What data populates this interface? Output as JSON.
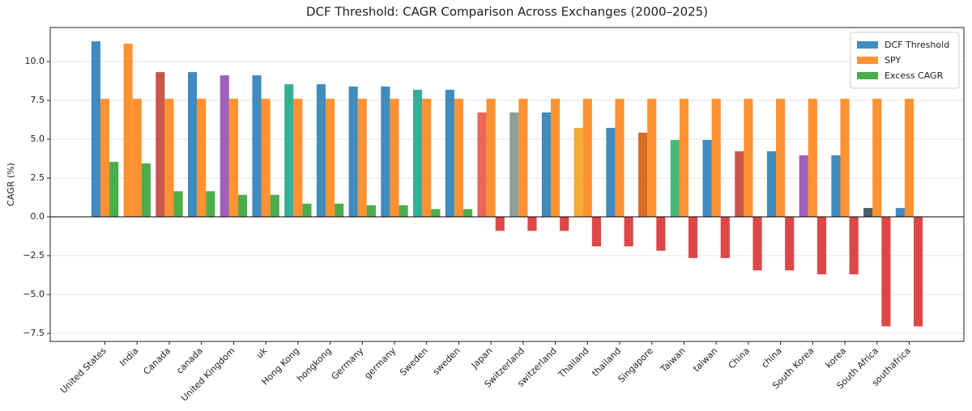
{
  "chart_data": {
    "type": "bar",
    "title": "DCF Threshold: CAGR Comparison Across Exchanges (2000–2025)",
    "y_label": "CAGR (%)",
    "categories": [
      "United States",
      "India",
      "Canada",
      "canada",
      "United Kingdom",
      "uk",
      "Hong Kong",
      "hongkong",
      "Germany",
      "germany",
      "Sweden",
      "sweden",
      "Japan",
      "Switzerland",
      "switzerland",
      "Thailand",
      "thailand",
      "Singapore",
      "Taiwan",
      "taiwan",
      "China",
      "china",
      "South Korea",
      "korea",
      "South Africa",
      "southafrica"
    ],
    "series": [
      {
        "name": "DCF Threshold",
        "color": "#1f77b4",
        "colors": [
          "#1f77b4",
          "#ff7f0e",
          "#c0392b",
          "#1f77b4",
          "#8e44ad",
          "#1f77b4",
          "#16a085",
          "#1f77b4",
          "#1f77b4",
          "#1f77b4",
          "#16a085",
          "#1f77b4",
          "#e74c3c",
          "#7f8c8d",
          "#1f77b4",
          "#f39c12",
          "#1f77b4",
          "#d35400",
          "#27ae60",
          "#1f77b4",
          "#c0392b",
          "#1f77b4",
          "#8e44ad",
          "#1f77b4",
          "#2c3e50",
          "#1f77b4"
        ],
        "values": [
          11.3,
          11.15,
          9.32,
          9.32,
          9.11,
          9.11,
          8.54,
          8.54,
          8.39,
          8.39,
          8.18,
          8.18,
          6.72,
          6.72,
          6.72,
          5.73,
          5.73,
          5.42,
          4.95,
          4.95,
          4.22,
          4.22,
          3.96,
          3.96,
          0.57,
          0.57
        ]
      },
      {
        "name": "SPY",
        "color": "#ff7f0e",
        "values": [
          7.6,
          7.6,
          7.6,
          7.6,
          7.6,
          7.6,
          7.6,
          7.6,
          7.6,
          7.6,
          7.6,
          7.6,
          7.6,
          7.6,
          7.6,
          7.6,
          7.6,
          7.6,
          7.6,
          7.6,
          7.6,
          7.6,
          7.6,
          7.6,
          7.6,
          7.6
        ]
      },
      {
        "name": "Excess CAGR",
        "color": "#2ca02c",
        "colors": [
          "#2ca02c",
          "#2ca02c",
          "#2ca02c",
          "#2ca02c",
          "#2ca02c",
          "#2ca02c",
          "#2ca02c",
          "#2ca02c",
          "#2ca02c",
          "#2ca02c",
          "#2ca02c",
          "#2ca02c",
          "#d62728",
          "#d62728",
          "#d62728",
          "#d62728",
          "#d62728",
          "#d62728",
          "#d62728",
          "#d62728",
          "#d62728",
          "#d62728",
          "#d62728",
          "#d62728",
          "#d62728",
          "#d62728"
        ],
        "values": [
          3.54,
          3.44,
          1.65,
          1.65,
          1.42,
          1.42,
          0.85,
          0.85,
          0.75,
          0.75,
          0.5,
          0.5,
          -0.9,
          -0.9,
          -0.9,
          -1.9,
          -1.9,
          -2.18,
          -2.65,
          -2.65,
          -3.45,
          -3.45,
          -3.7,
          -3.7,
          -7.05,
          -7.05
        ]
      }
    ],
    "ylim": [
      -8.02,
      12.19
    ],
    "yticks": [
      {
        "value": -7.5,
        "label": "−7.5"
      },
      {
        "value": -5,
        "label": "−5.0"
      },
      {
        "value": -2.5,
        "label": "−2.5"
      },
      {
        "value": 0,
        "label": "0.0"
      },
      2.5,
      {
        "value": 5,
        "label": "5.0"
      },
      7.5,
      {
        "value": 10,
        "label": "10.0"
      }
    ],
    "grid": true,
    "legend": "upper right"
  }
}
